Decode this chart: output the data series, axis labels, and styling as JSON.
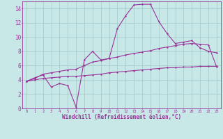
{
  "xlabel": "Windchill (Refroidissement éolien,°C)",
  "xlim": [
    -0.5,
    23.5
  ],
  "ylim": [
    0,
    15
  ],
  "xticks": [
    0,
    1,
    2,
    3,
    4,
    5,
    6,
    7,
    8,
    9,
    10,
    11,
    12,
    13,
    14,
    15,
    16,
    17,
    18,
    19,
    20,
    21,
    22,
    23
  ],
  "yticks": [
    0,
    2,
    4,
    6,
    8,
    10,
    12,
    14
  ],
  "bg_color": "#c8e8e8",
  "grid_color": "#a0c8c8",
  "line_color": "#993399",
  "line1_x": [
    0,
    1,
    2,
    3,
    4,
    5,
    6,
    7,
    8,
    9,
    10,
    11,
    12,
    13,
    14,
    15,
    16,
    17,
    18,
    19,
    20,
    21,
    22,
    23
  ],
  "line1_y": [
    3.8,
    4.3,
    4.7,
    3.0,
    3.5,
    3.2,
    0.2,
    6.8,
    8.0,
    6.8,
    7.0,
    11.2,
    13.0,
    14.5,
    14.6,
    14.6,
    12.2,
    10.5,
    9.1,
    9.3,
    9.5,
    8.5,
    8.0,
    7.8
  ],
  "line2_x": [
    0,
    1,
    2,
    3,
    4,
    5,
    6,
    7,
    8,
    9,
    10,
    11,
    12,
    13,
    14,
    15,
    16,
    17,
    18,
    19,
    20,
    21,
    22,
    23
  ],
  "line2_y": [
    3.8,
    4.2,
    4.8,
    5.0,
    5.2,
    5.4,
    5.5,
    6.0,
    6.5,
    6.7,
    7.0,
    7.2,
    7.5,
    7.7,
    7.9,
    8.1,
    8.4,
    8.6,
    8.8,
    9.0,
    9.1,
    9.0,
    8.9,
    5.8
  ],
  "line3_x": [
    0,
    1,
    2,
    3,
    4,
    5,
    6,
    7,
    8,
    9,
    10,
    11,
    12,
    13,
    14,
    15,
    16,
    17,
    18,
    19,
    20,
    21,
    22,
    23
  ],
  "line3_y": [
    3.8,
    4.0,
    4.2,
    4.3,
    4.4,
    4.5,
    4.5,
    4.6,
    4.7,
    4.8,
    5.0,
    5.1,
    5.2,
    5.3,
    5.4,
    5.5,
    5.6,
    5.7,
    5.7,
    5.8,
    5.8,
    5.9,
    5.9,
    5.9
  ],
  "marker_size": 2.0,
  "line_width": 0.8
}
